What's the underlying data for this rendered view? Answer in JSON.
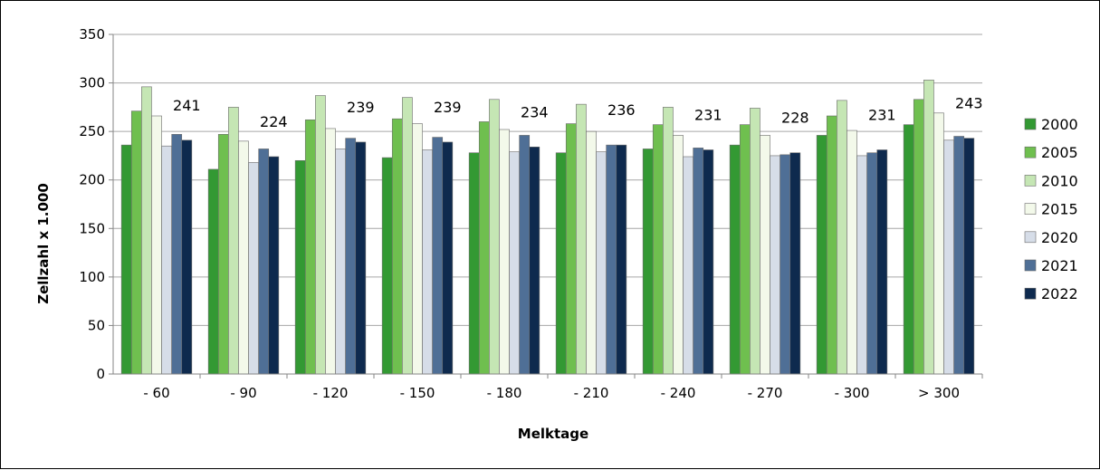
{
  "chart_data": {
    "type": "bar",
    "title": "",
    "xlabel": "Melktage",
    "ylabel": "Zellzahl x 1.000",
    "ylim": [
      0,
      350
    ],
    "yticks": [
      0,
      50,
      100,
      150,
      200,
      250,
      300,
      350
    ],
    "grid": true,
    "legend_position": "right",
    "categories": [
      "- 60",
      "- 90",
      "- 120",
      "- 150",
      "- 180",
      "- 210",
      "- 240",
      "- 270",
      "- 300",
      "> 300"
    ],
    "series": [
      {
        "name": "2000",
        "color": "#339933",
        "values": [
          236,
          211,
          220,
          223,
          228,
          228,
          232,
          236,
          246,
          257
        ]
      },
      {
        "name": "2005",
        "color": "#6fbf4f",
        "values": [
          271,
          247,
          262,
          263,
          260,
          258,
          257,
          257,
          266,
          283
        ]
      },
      {
        "name": "2010",
        "color": "#c5e6b4",
        "values": [
          296,
          275,
          287,
          285,
          283,
          278,
          275,
          274,
          282,
          303
        ]
      },
      {
        "name": "2015",
        "color": "#f3f9ea",
        "values": [
          266,
          240,
          253,
          258,
          252,
          250,
          246,
          246,
          251,
          269
        ]
      },
      {
        "name": "2020",
        "color": "#d6dde8",
        "values": [
          235,
          218,
          232,
          231,
          229,
          229,
          224,
          225,
          225,
          241
        ]
      },
      {
        "name": "2021",
        "color": "#4f6f96",
        "values": [
          247,
          232,
          243,
          244,
          246,
          236,
          233,
          226,
          228,
          245
        ]
      },
      {
        "name": "2022",
        "color": "#0e2a4e",
        "values": [
          241,
          224,
          239,
          239,
          234,
          236,
          231,
          228,
          231,
          243
        ]
      }
    ],
    "data_labels_series": "2022"
  }
}
